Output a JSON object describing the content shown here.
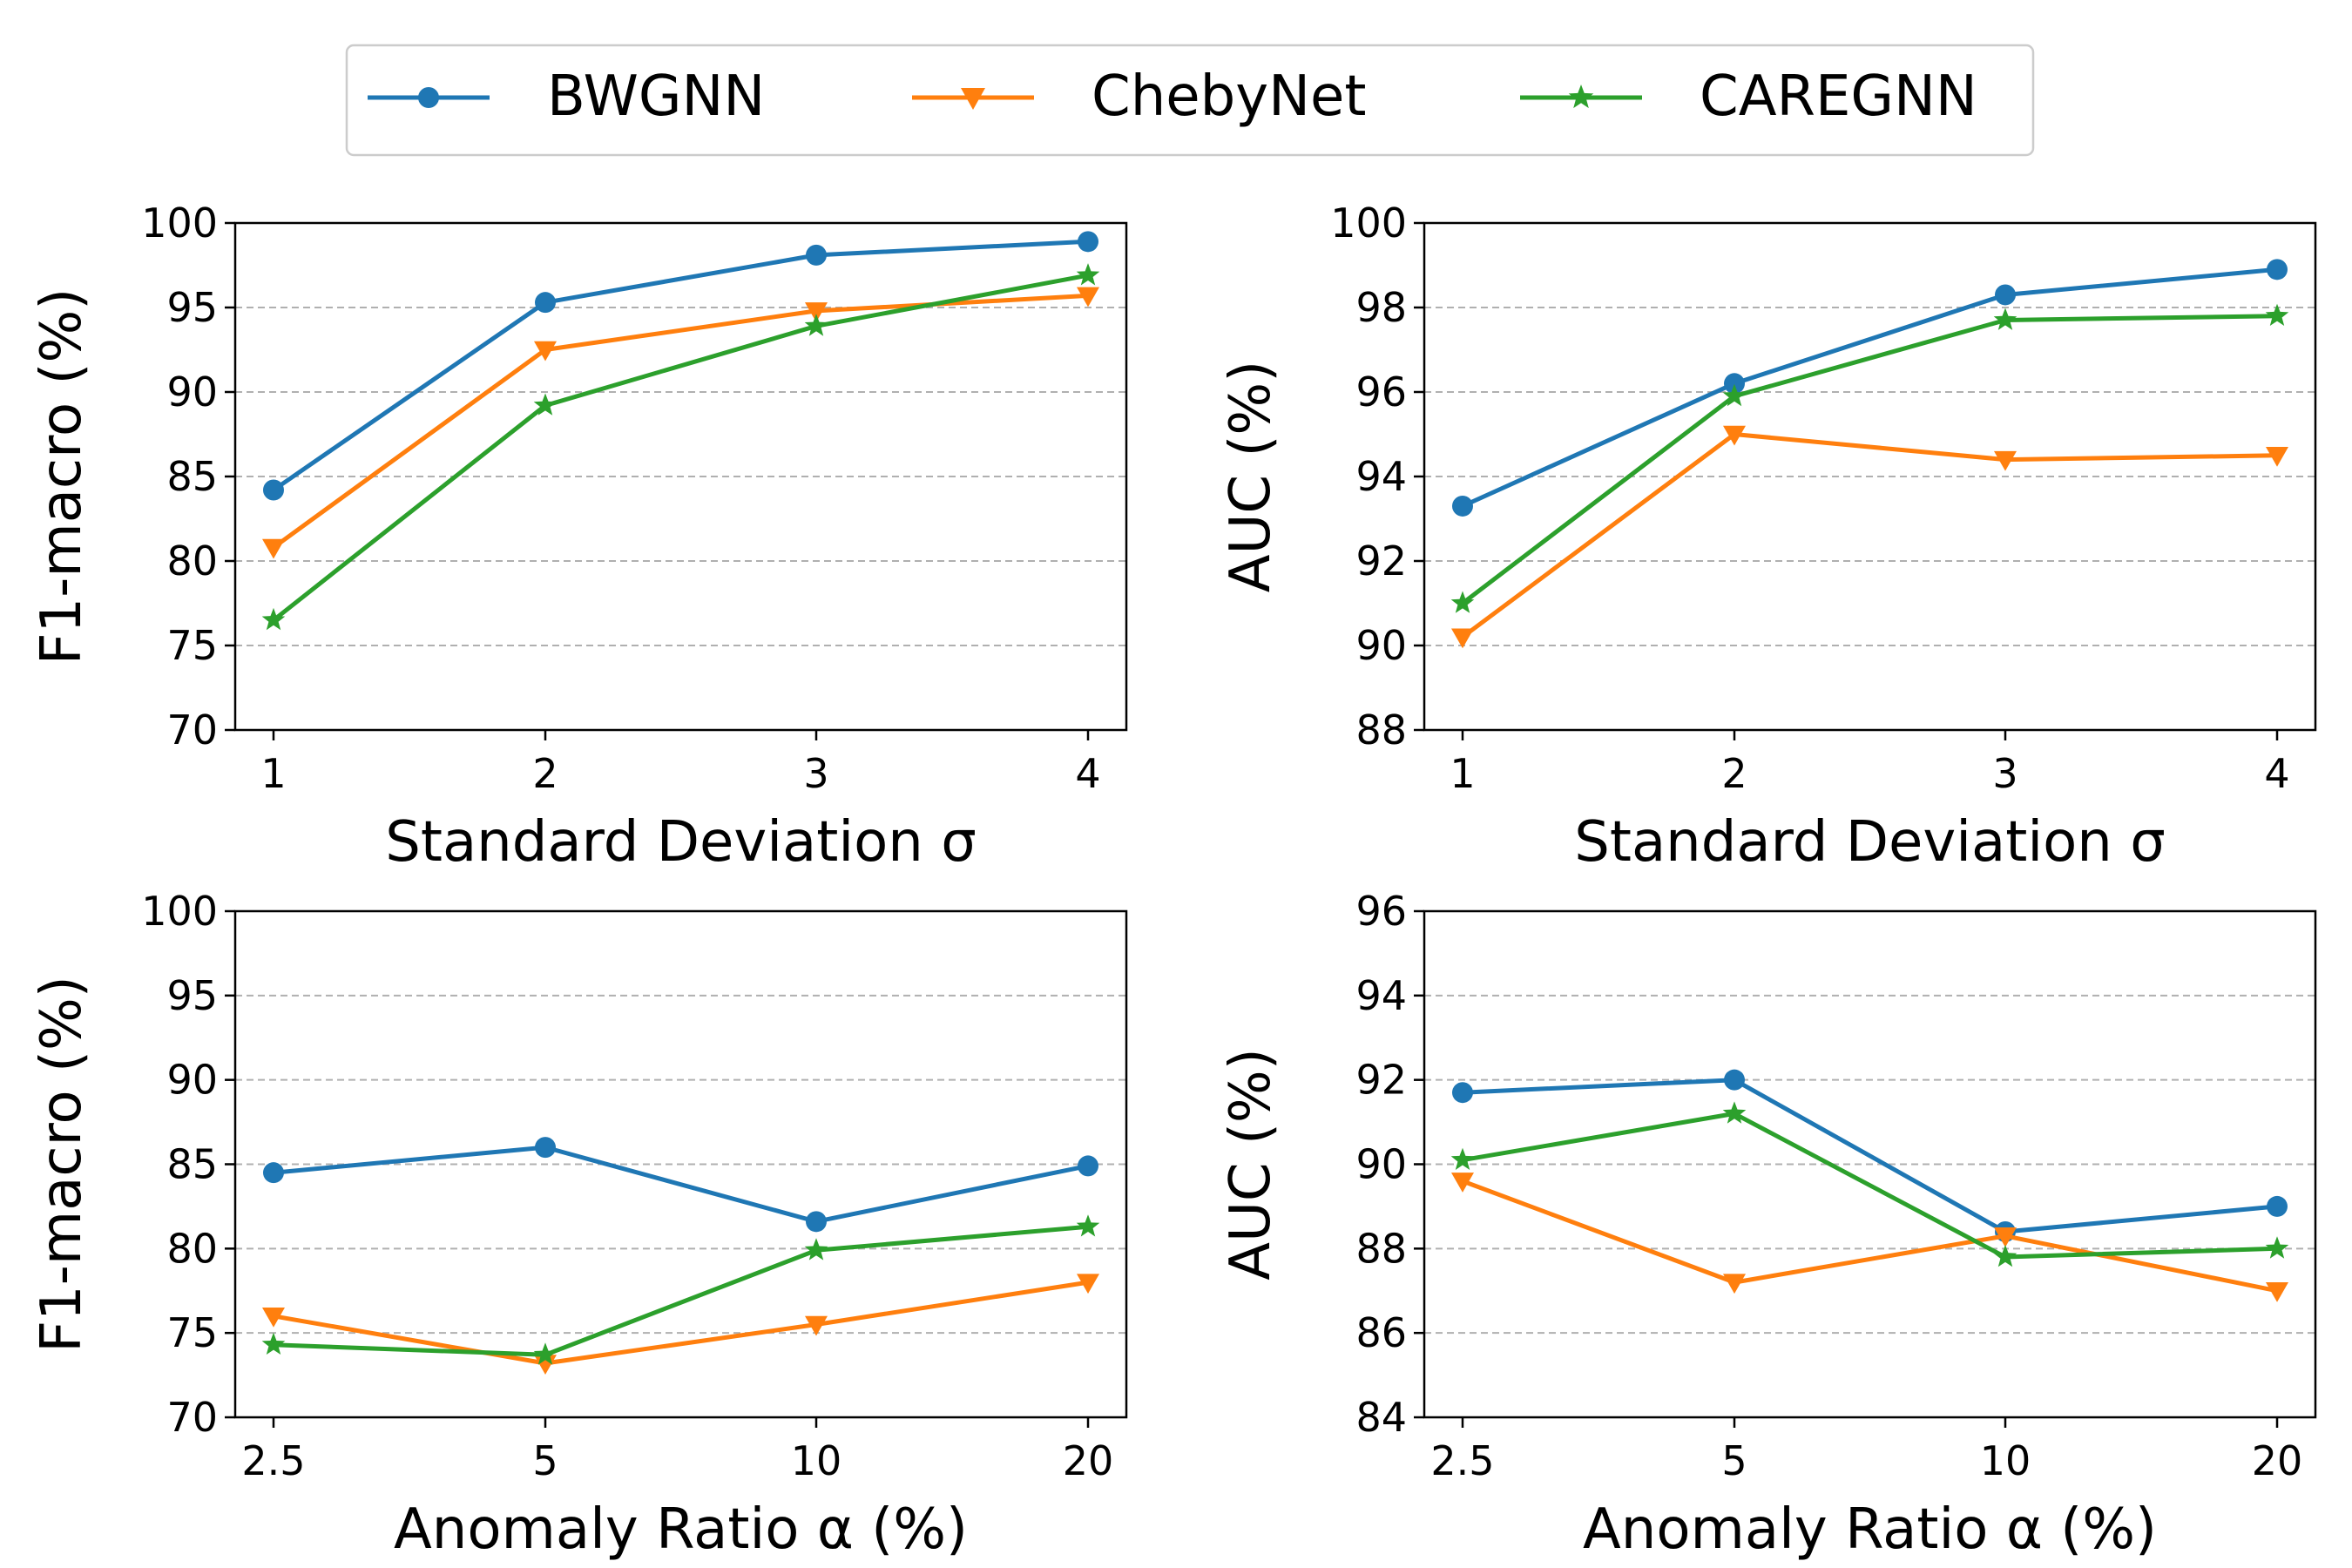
{
  "legend": {
    "entries": [
      "BWGNN",
      "ChebyNet",
      "CAREGNN"
    ]
  },
  "colors": {
    "BWGNN": "#1f77b4",
    "ChebyNet": "#ff7f0e",
    "CAREGNN": "#2ca02c"
  },
  "chart_data": [
    {
      "type": "line",
      "title": "",
      "xlabel": "Standard Deviation σ",
      "ylabel": "F1-macro (%)",
      "categories": [
        "1",
        "2",
        "3",
        "4"
      ],
      "ylim": [
        70,
        100
      ],
      "yticks": [
        70,
        75,
        80,
        85,
        90,
        95,
        100
      ],
      "grid": true,
      "series": [
        {
          "name": "BWGNN",
          "marker": "circle",
          "values": [
            84.2,
            95.3,
            98.1,
            98.9
          ]
        },
        {
          "name": "ChebyNet",
          "marker": "triangle-down",
          "values": [
            80.8,
            92.5,
            94.8,
            95.7
          ]
        },
        {
          "name": "CAREGNN",
          "marker": "star",
          "values": [
            76.5,
            89.2,
            93.9,
            96.9
          ]
        }
      ]
    },
    {
      "type": "line",
      "title": "",
      "xlabel": "Standard Deviation σ",
      "ylabel": "AUC (%)",
      "categories": [
        "1",
        "2",
        "3",
        "4"
      ],
      "ylim": [
        88,
        100
      ],
      "yticks": [
        88,
        90,
        92,
        94,
        96,
        98,
        100
      ],
      "grid": true,
      "series": [
        {
          "name": "BWGNN",
          "marker": "circle",
          "values": [
            93.3,
            96.2,
            98.3,
            98.9
          ]
        },
        {
          "name": "ChebyNet",
          "marker": "triangle-down",
          "values": [
            90.2,
            95.0,
            94.4,
            94.5
          ]
        },
        {
          "name": "CAREGNN",
          "marker": "star",
          "values": [
            91.0,
            95.9,
            97.7,
            97.8
          ]
        }
      ]
    },
    {
      "type": "line",
      "title": "",
      "xlabel": "Anomaly Ratio α (%)",
      "ylabel": "F1-macro (%)",
      "categories": [
        "2.5",
        "5",
        "10",
        "20"
      ],
      "ylim": [
        70,
        100
      ],
      "yticks": [
        70,
        75,
        80,
        85,
        90,
        95,
        100
      ],
      "grid": true,
      "series": [
        {
          "name": "BWGNN",
          "marker": "circle",
          "values": [
            84.5,
            86.0,
            81.6,
            84.9
          ]
        },
        {
          "name": "ChebyNet",
          "marker": "triangle-down",
          "values": [
            76.0,
            73.2,
            75.5,
            78.0
          ]
        },
        {
          "name": "CAREGNN",
          "marker": "star",
          "values": [
            74.3,
            73.7,
            79.9,
            81.3
          ]
        }
      ]
    },
    {
      "type": "line",
      "title": "",
      "xlabel": "Anomaly Ratio α (%)",
      "ylabel": "AUC (%)",
      "categories": [
        "2.5",
        "5",
        "10",
        "20"
      ],
      "ylim": [
        84,
        96
      ],
      "yticks": [
        84,
        86,
        88,
        90,
        92,
        94,
        96
      ],
      "grid": true,
      "series": [
        {
          "name": "BWGNN",
          "marker": "circle",
          "values": [
            91.7,
            92.0,
            88.4,
            89.0
          ]
        },
        {
          "name": "ChebyNet",
          "marker": "triangle-down",
          "values": [
            89.6,
            87.2,
            88.3,
            87.0
          ]
        },
        {
          "name": "CAREGNN",
          "marker": "star",
          "values": [
            90.1,
            91.2,
            87.8,
            88.0
          ]
        }
      ]
    }
  ]
}
